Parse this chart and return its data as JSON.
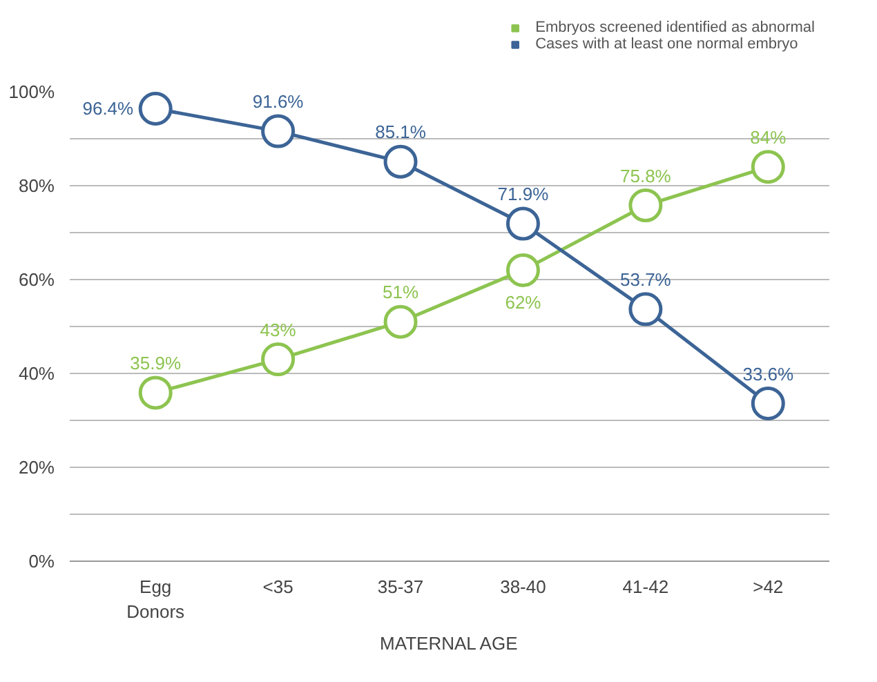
{
  "chart_data": {
    "type": "line",
    "xlabel": "MATERNAL AGE",
    "categories": [
      "Egg Donors",
      "<35",
      "35-37",
      "38-40",
      "41-42",
      ">42"
    ],
    "series": [
      {
        "name": "Embryos screened identified as abnormal",
        "color": "#8dc450",
        "values": [
          35.9,
          43,
          51,
          62,
          75.8,
          84
        ],
        "value_labels": [
          "35.9%",
          "43%",
          "51%",
          "62%",
          "75.8%",
          "84%"
        ]
      },
      {
        "name": "Cases with at least one normal embryo",
        "color": "#3c6496",
        "values": [
          96.4,
          91.6,
          85.1,
          71.9,
          53.7,
          33.6
        ],
        "value_labels": [
          "96.4%",
          "91.6%",
          "85.1%",
          "71.9%",
          "53.7%",
          "33.6%"
        ]
      }
    ],
    "ylim": [
      0,
      100
    ],
    "yticks": [
      {
        "value": 0,
        "label": "0%"
      },
      {
        "value": 10,
        "label": null
      },
      {
        "value": 20,
        "label": "20%"
      },
      {
        "value": 30,
        "label": null
      },
      {
        "value": 40,
        "label": "40%"
      },
      {
        "value": 50,
        "label": null
      },
      {
        "value": 60,
        "label": "60%"
      },
      {
        "value": 70,
        "label": null
      },
      {
        "value": 80,
        "label": "80%"
      },
      {
        "value": 90,
        "label": null
      },
      {
        "value": 100,
        "label": "100%"
      }
    ],
    "data_labels": true,
    "grid": "y",
    "legend": "top right",
    "marker": "circle",
    "line_style": "solid"
  }
}
